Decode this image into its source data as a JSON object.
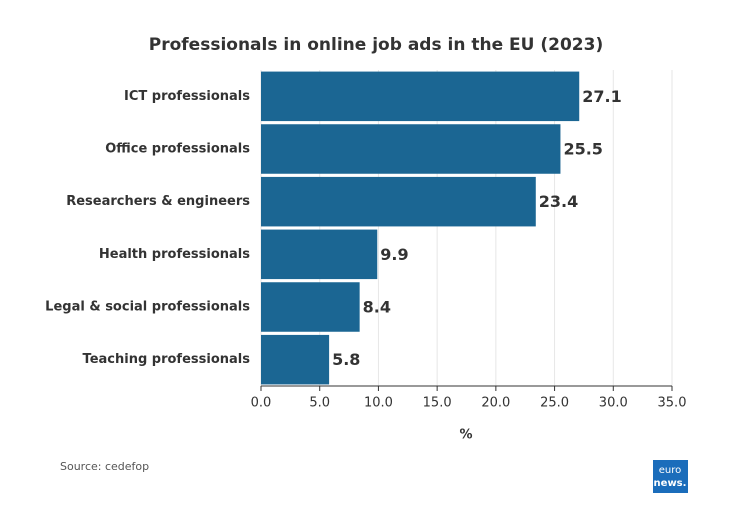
{
  "chart_data": {
    "type": "bar",
    "orientation": "horizontal",
    "title": "Professionals in online job ads in the EU (2023)",
    "categories": [
      "ICT professionals",
      "Office professionals",
      "Researchers & engineers",
      "Health professionals",
      "Legal & social professionals",
      "Teaching professionals"
    ],
    "values": [
      27.1,
      25.5,
      23.4,
      9.9,
      8.4,
      5.8
    ],
    "color": "#1b6693",
    "xlim": [
      0,
      35
    ],
    "xticks": [
      {
        "value": 0,
        "label": "0.0"
      },
      {
        "value": 5,
        "label": "5.0"
      },
      {
        "value": 10,
        "label": "10.0"
      },
      {
        "value": 15,
        "label": "15.0"
      },
      {
        "value": 20,
        "label": "20.0"
      },
      {
        "value": 25,
        "label": "25.0"
      },
      {
        "value": 30,
        "label": "30.0"
      },
      {
        "value": 35,
        "label": "35.0"
      }
    ],
    "xlabel": "%",
    "grid": true,
    "source": "Source: cedefop",
    "logo": [
      "euro",
      "news."
    ]
  }
}
